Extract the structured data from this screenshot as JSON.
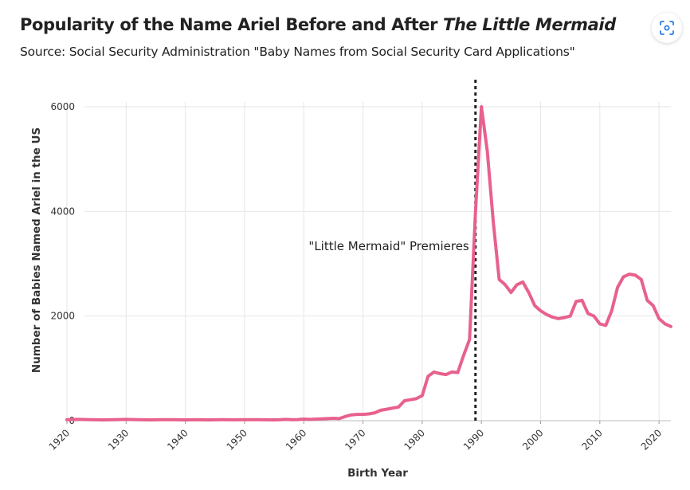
{
  "header": {
    "title_prefix": "Popularity of the Name Ariel Before and After ",
    "title_italic": "The Little Mermaid",
    "subtitle": "Source: Social Security Administration \"Baby Names from Social Security Card Applications\""
  },
  "toolbar": {
    "expand_icon": "focus-expand-icon"
  },
  "colors": {
    "line": "#e8618c",
    "grid": "#e6e6e6",
    "marker": "#222222",
    "text": "#222222"
  },
  "chart_data": {
    "type": "line",
    "title": "Popularity of the Name Ariel Before and After The Little Mermaid",
    "xlabel": "Birth Year",
    "ylabel": "Number of Babies Named Ariel in the US",
    "xlim": [
      1920,
      2022
    ],
    "ylim": [
      0,
      6000
    ],
    "x_ticks": [
      "1920",
      "1930",
      "1940",
      "1950",
      "1960",
      "1970",
      "1980",
      "1990",
      "2000",
      "2010",
      "2020"
    ],
    "y_ticks": [
      "0",
      "2000",
      "4000",
      "6000"
    ],
    "grid": true,
    "legend": "none",
    "series": [
      {
        "x": [
          1920,
          1922,
          1924,
          1926,
          1928,
          1930,
          1932,
          1934,
          1936,
          1938,
          1940,
          1942,
          1944,
          1946,
          1948,
          1950,
          1952,
          1954,
          1955,
          1956,
          1957,
          1958,
          1959,
          1960,
          1961,
          1962,
          1963,
          1964,
          1965,
          1966,
          1967,
          1968,
          1969,
          1970,
          1971,
          1972,
          1973,
          1974,
          1975,
          1976,
          1977,
          1978,
          1979,
          1980,
          1981,
          1982,
          1983,
          1984,
          1985,
          1986,
          1987,
          1988,
          1989,
          1990,
          1991,
          1992,
          1993,
          1994,
          1995,
          1996,
          1997,
          1998,
          1999,
          2000,
          2001,
          2002,
          2003,
          2004,
          2005,
          2006,
          2007,
          2008,
          2009,
          2010,
          2011,
          2012,
          2013,
          2014,
          2015,
          2016,
          2017,
          2018,
          2019,
          2020,
          2021,
          2022
        ],
        "y": [
          20,
          25,
          20,
          15,
          20,
          25,
          20,
          15,
          20,
          18,
          15,
          18,
          15,
          18,
          16,
          18,
          18,
          16,
          15,
          20,
          25,
          18,
          22,
          30,
          25,
          30,
          35,
          40,
          45,
          40,
          80,
          110,
          120,
          120,
          130,
          150,
          200,
          220,
          240,
          260,
          380,
          400,
          420,
          480,
          850,
          930,
          900,
          880,
          930,
          920,
          1250,
          1550,
          4000,
          6000,
          5150,
          3800,
          2700,
          2600,
          2450,
          2600,
          2650,
          2450,
          2200,
          2100,
          2030,
          1980,
          1950,
          1970,
          2000,
          2280,
          2300,
          2050,
          2000,
          1850,
          1820,
          2100,
          2550,
          2750,
          2800,
          2780,
          2700,
          2300,
          2200,
          1950,
          1850,
          1800
        ]
      }
    ],
    "annotations": [
      {
        "text": "\"Little Mermaid\" Premieres",
        "x": 1989
      }
    ]
  }
}
